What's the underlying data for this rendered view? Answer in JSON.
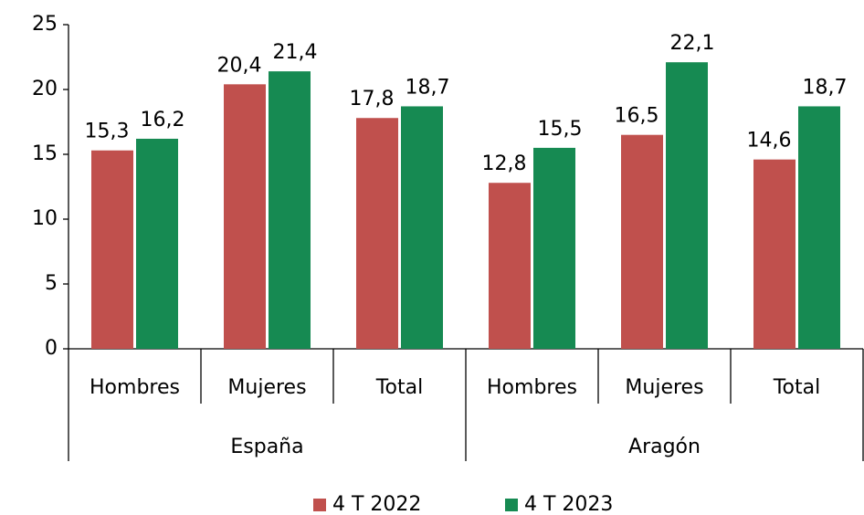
{
  "chart_data": {
    "type": "bar",
    "categories": [
      "Hombres",
      "Mujeres",
      "Total",
      "Hombres",
      "Mujeres",
      "Total"
    ],
    "category_groups": [
      "España",
      "Aragón"
    ],
    "series": [
      {
        "name": "4 T 2022",
        "color": "#c0504d",
        "values": [
          15.3,
          20.4,
          17.8,
          12.8,
          16.5,
          14.6
        ],
        "value_labels": [
          "15,3",
          "20,4",
          "17,8",
          "12,8",
          "16,5",
          "14,6"
        ]
      },
      {
        "name": "4 T 2023",
        "color": "#168a52",
        "values": [
          16.2,
          21.4,
          18.7,
          15.5,
          22.1,
          18.7
        ],
        "value_labels": [
          "16,2",
          "21,4",
          "18,7",
          "15,5",
          "22,1",
          "18,7"
        ]
      }
    ],
    "ylim": [
      0,
      25
    ],
    "yticks": [
      0,
      5,
      10,
      15,
      20,
      25
    ],
    "grid": false,
    "legend": "bottom"
  }
}
